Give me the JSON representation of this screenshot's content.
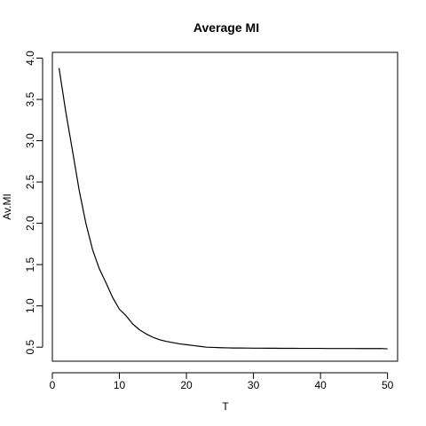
{
  "chart_data": {
    "type": "line",
    "title": "Average MI",
    "xlabel": "T",
    "ylabel": "Av.MI",
    "xlim": [
      0,
      51.5
    ],
    "ylim": [
      0.33,
      4.07
    ],
    "xticks": [
      0,
      10,
      20,
      30,
      40,
      50
    ],
    "yticks": [
      0.5,
      1.0,
      1.5,
      2.0,
      2.5,
      3.0,
      3.5,
      4.0
    ],
    "xtick_labels": [
      "0",
      "10",
      "20",
      "30",
      "40",
      "50"
    ],
    "ytick_labels": [
      "0.5",
      "1.0",
      "1.5",
      "2.0",
      "2.5",
      "3.0",
      "3.5",
      "4.0"
    ],
    "grid": false,
    "legend": "none",
    "series": [
      {
        "x": [
          1,
          2,
          3,
          4,
          5,
          6,
          7,
          8,
          9,
          10,
          11,
          12,
          13,
          14,
          15,
          16,
          17,
          18,
          19,
          20,
          21,
          22,
          23,
          24,
          25,
          26,
          27,
          28,
          29,
          30,
          31,
          32,
          33,
          34,
          35,
          36,
          37,
          38,
          39,
          40,
          41,
          42,
          43,
          44,
          45,
          46,
          47,
          48,
          49,
          50
        ],
        "y": [
          3.88,
          3.35,
          2.88,
          2.4,
          2.0,
          1.68,
          1.45,
          1.28,
          1.1,
          0.96,
          0.88,
          0.78,
          0.71,
          0.66,
          0.62,
          0.59,
          0.57,
          0.555,
          0.54,
          0.53,
          0.52,
          0.51,
          0.5,
          0.497,
          0.494,
          0.492,
          0.49,
          0.49,
          0.489,
          0.488,
          0.488,
          0.487,
          0.487,
          0.486,
          0.486,
          0.486,
          0.485,
          0.485,
          0.485,
          0.485,
          0.484,
          0.484,
          0.484,
          0.484,
          0.484,
          0.483,
          0.483,
          0.483,
          0.484,
          0.48
        ]
      }
    ]
  }
}
